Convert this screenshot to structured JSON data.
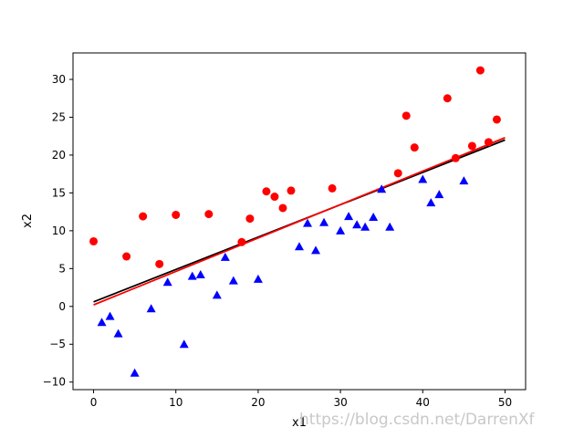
{
  "chart_data": {
    "type": "scatter",
    "xlabel": "x1",
    "ylabel": "x2",
    "xlim": [
      -2.5,
      52.5
    ],
    "ylim": [
      -11,
      33.5
    ],
    "xticks": [
      0,
      10,
      20,
      30,
      40,
      50
    ],
    "yticks": [
      -10,
      -5,
      0,
      5,
      10,
      15,
      20,
      25,
      30
    ],
    "grid": false,
    "legend": "none",
    "series": [
      {
        "marker": "circle",
        "color": "#ff0000",
        "points": [
          [
            0,
            8.6
          ],
          [
            4,
            6.6
          ],
          [
            6,
            11.9
          ],
          [
            8,
            5.6
          ],
          [
            10,
            12.1
          ],
          [
            14,
            12.2
          ],
          [
            18,
            8.5
          ],
          [
            19,
            11.6
          ],
          [
            21,
            15.2
          ],
          [
            22,
            14.5
          ],
          [
            23,
            13.0
          ],
          [
            24,
            15.3
          ],
          [
            29,
            15.6
          ],
          [
            37,
            17.6
          ],
          [
            38,
            25.2
          ],
          [
            39,
            21.0
          ],
          [
            43,
            27.5
          ],
          [
            44,
            19.6
          ],
          [
            46,
            21.2
          ],
          [
            47,
            31.2
          ],
          [
            48,
            21.7
          ],
          [
            49,
            24.7
          ]
        ]
      },
      {
        "marker": "triangle",
        "color": "#0000ff",
        "points": [
          [
            1,
            -2.1
          ],
          [
            2,
            -1.3
          ],
          [
            3,
            -3.6
          ],
          [
            5,
            -8.8
          ],
          [
            7,
            -0.3
          ],
          [
            9,
            3.2
          ],
          [
            11,
            -5.0
          ],
          [
            12,
            4.0
          ],
          [
            13,
            4.2
          ],
          [
            15,
            1.5
          ],
          [
            16,
            6.5
          ],
          [
            17,
            3.4
          ],
          [
            20,
            3.6
          ],
          [
            25,
            7.9
          ],
          [
            26,
            11.0
          ],
          [
            27,
            7.4
          ],
          [
            28,
            11.1
          ],
          [
            30,
            10.0
          ],
          [
            31,
            11.9
          ],
          [
            32,
            10.8
          ],
          [
            33,
            10.5
          ],
          [
            34,
            11.8
          ],
          [
            35,
            15.5
          ],
          [
            36,
            10.5
          ],
          [
            40,
            16.8
          ],
          [
            41,
            13.7
          ],
          [
            42,
            14.8
          ],
          [
            45,
            16.6
          ]
        ]
      }
    ],
    "lines": [
      {
        "color": "#000000",
        "x": [
          0,
          50
        ],
        "y": [
          0.6,
          22.0
        ]
      },
      {
        "color": "#ff0000",
        "x": [
          0,
          50
        ],
        "y": [
          0.2,
          22.3
        ]
      }
    ]
  },
  "watermark": "https://blog.csdn.net/DarrenXf"
}
